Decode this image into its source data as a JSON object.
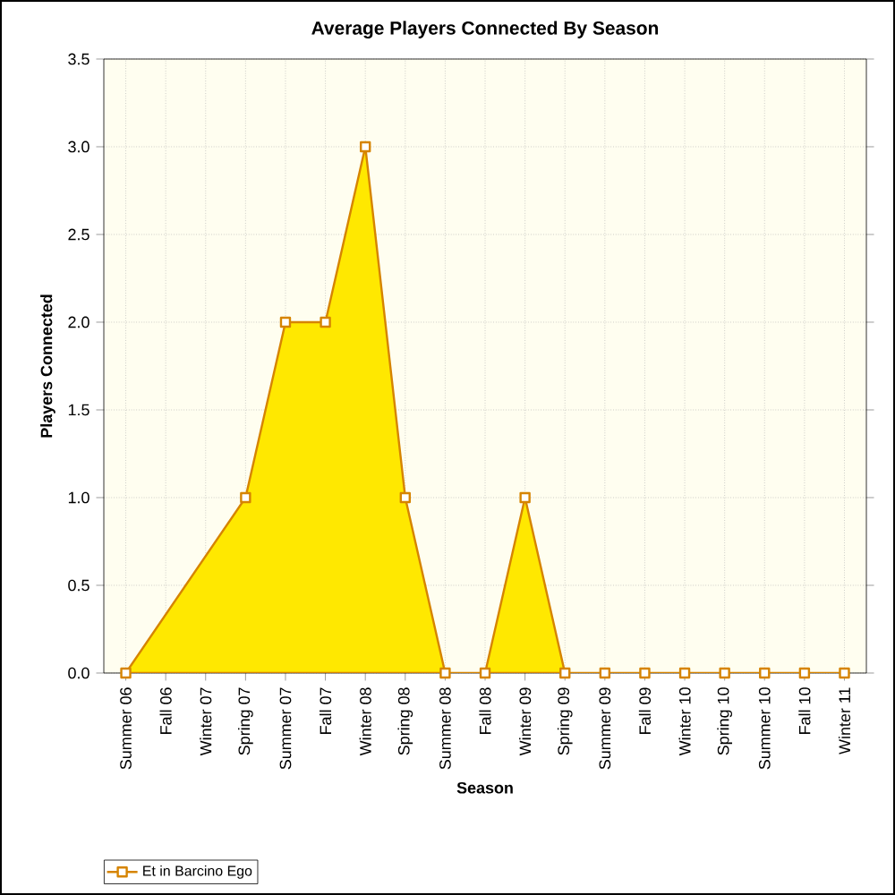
{
  "chart_data": {
    "type": "area",
    "title": "Average Players Connected By Season",
    "xlabel": "Season",
    "ylabel": "Players Connected",
    "categories": [
      "Summer 06",
      "Fall 06",
      "Winter 07",
      "Spring 07",
      "Summer 07",
      "Fall 07",
      "Winter 08",
      "Spring 08",
      "Summer 08",
      "Fall 08",
      "Winter 09",
      "Spring 09",
      "Summer 09",
      "Fall 09",
      "Winter 10",
      "Spring 10",
      "Summer 10",
      "Fall 10",
      "Winter 11"
    ],
    "series": [
      {
        "name": "Et in Barcino Ego",
        "color": "#ffe800",
        "values": [
          0,
          null,
          null,
          1,
          2,
          2,
          3,
          1,
          0,
          0,
          1,
          0,
          0,
          0,
          0,
          0,
          0,
          0,
          0
        ]
      }
    ],
    "ylim": [
      0,
      3.5
    ],
    "yticks": [
      {
        "value": 0,
        "label": "0.0"
      },
      {
        "value": 0.5,
        "label": "0.5"
      },
      {
        "value": 1,
        "label": "1.0"
      },
      {
        "value": 1.5,
        "label": "1.5"
      },
      {
        "value": 2,
        "label": "2.0"
      },
      {
        "value": 2.5,
        "label": "2.5"
      },
      {
        "value": 3,
        "label": "3.0"
      },
      {
        "value": 3.5,
        "label": "3.5"
      }
    ],
    "grid": true,
    "legend": "bottom left",
    "marker": "square"
  }
}
